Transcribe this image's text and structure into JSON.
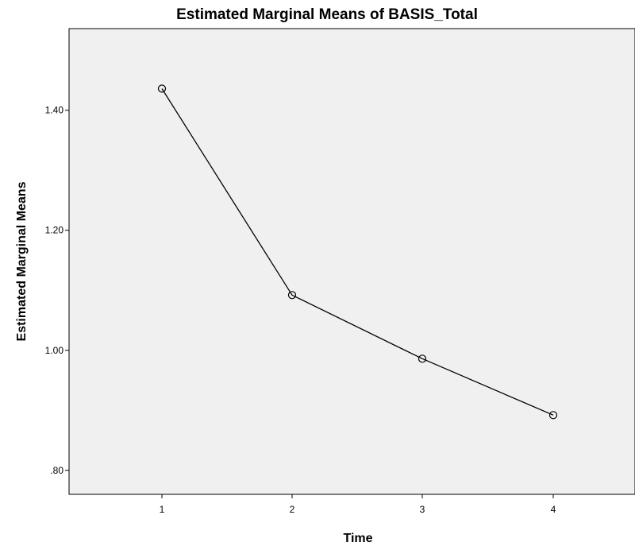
{
  "chart_data": {
    "type": "line",
    "title": "Estimated Marginal Means of BASIS_Total",
    "xlabel": "Time",
    "ylabel": "Estimated Marginal Means",
    "categories": [
      "1",
      "2",
      "3",
      "4"
    ],
    "series": [
      {
        "values": [
          1.436,
          1.092,
          0.986,
          0.892
        ]
      }
    ],
    "ylim": [
      0.76,
      1.536
    ],
    "yticks": [
      0.8,
      1.0,
      1.2,
      1.4
    ],
    "ytick_labels": [
      ".80",
      "1.00",
      "1.20",
      "1.40"
    ],
    "marker": "open-circle",
    "grid": false,
    "legend": "none",
    "colors": {
      "plot_background": "#f0f0f0",
      "line": "#000000",
      "page_background": "#ffffff"
    }
  }
}
